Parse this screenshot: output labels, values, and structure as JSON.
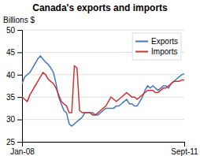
{
  "chart_data": {
    "type": "line",
    "title": "Canada's exports and imports",
    "ylabel": "Billions $",
    "categories": [
      "Jan-08",
      null,
      null,
      null,
      null,
      null,
      null,
      null,
      null,
      null,
      null,
      null,
      null,
      null,
      null,
      null,
      null,
      null,
      null,
      null,
      null,
      null,
      null,
      null,
      null,
      null,
      null,
      null,
      null,
      null,
      null,
      null,
      null,
      null,
      null,
      null,
      null,
      null,
      null,
      null,
      null,
      null,
      null,
      null,
      null,
      null,
      null,
      null,
      null,
      null,
      null,
      null,
      null,
      null,
      null,
      null,
      null,
      null,
      null,
      null,
      null,
      null,
      "Sept-11"
    ],
    "series": [
      {
        "name": "Exports",
        "color": "#4477bb",
        "values": [
          38.0,
          39.5,
          40.0,
          40.5,
          41.5,
          42.5,
          43.5,
          44.2,
          43.5,
          42.8,
          42.3,
          41.5,
          40.5,
          38.0,
          35.0,
          33.5,
          32.0,
          31.5,
          29.0,
          28.5,
          29.0,
          29.5,
          30.0,
          30.5,
          31.5,
          31.5,
          31.5,
          31.5,
          31.0,
          31.0,
          31.5,
          32.0,
          32.5,
          32.5,
          32.5,
          32.5,
          33.0,
          33.0,
          33.5,
          34.0,
          34.5,
          33.5,
          33.5,
          33.0,
          33.0,
          34.0,
          35.0,
          36.5,
          37.5,
          37.0,
          37.5,
          37.0,
          36.5,
          37.0,
          37.5,
          37.5,
          37.0,
          38.0,
          38.5,
          39.0,
          39.5,
          40.0,
          40.2
        ]
      },
      {
        "name": "Imports",
        "color": "#cc3333",
        "values": [
          35.0,
          34.5,
          34.0,
          35.5,
          36.5,
          37.5,
          38.5,
          39.5,
          40.5,
          40.0,
          39.0,
          38.5,
          38.0,
          37.0,
          35.5,
          34.0,
          33.5,
          33.0,
          31.5,
          31.5,
          42.0,
          41.5,
          32.0,
          31.5,
          31.5,
          31.5,
          31.5,
          31.0,
          31.0,
          31.5,
          32.0,
          32.5,
          33.0,
          34.0,
          35.0,
          34.5,
          34.0,
          34.5,
          35.0,
          35.5,
          36.0,
          35.5,
          35.0,
          35.0,
          34.5,
          35.0,
          35.5,
          36.0,
          36.5,
          36.5,
          36.5,
          36.0,
          36.0,
          36.5,
          37.0,
          37.0,
          37.5,
          38.0,
          38.5,
          38.5,
          38.5,
          38.8,
          38.8
        ]
      }
    ],
    "ylim": [
      25,
      50
    ],
    "yticks": [
      25,
      30,
      35,
      40,
      45,
      50
    ],
    "grid": true,
    "legend": "upper right"
  }
}
